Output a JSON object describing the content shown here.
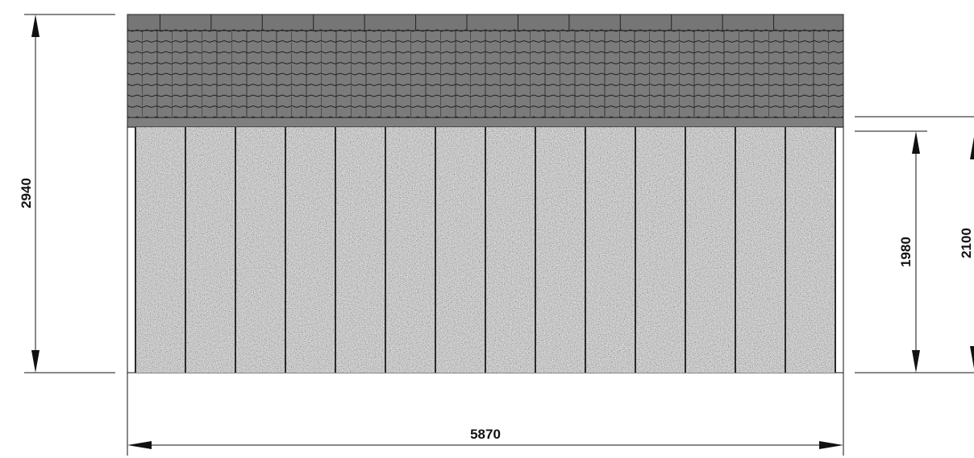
{
  "dimensions": {
    "total_height": "2940",
    "total_width": "5870",
    "panel_height": "1980",
    "wall_height": "2100"
  },
  "facade": {
    "panel_count": 14,
    "roof_tile_columns": 24,
    "roof_tile_rows": 8
  },
  "colors": {
    "roof_fill": "#7b7b7b",
    "roof_lines": "#222222",
    "panel_base": "#a9a9a9",
    "panel_separator": "#2a2a2a",
    "dimension_lines": "#111111"
  }
}
